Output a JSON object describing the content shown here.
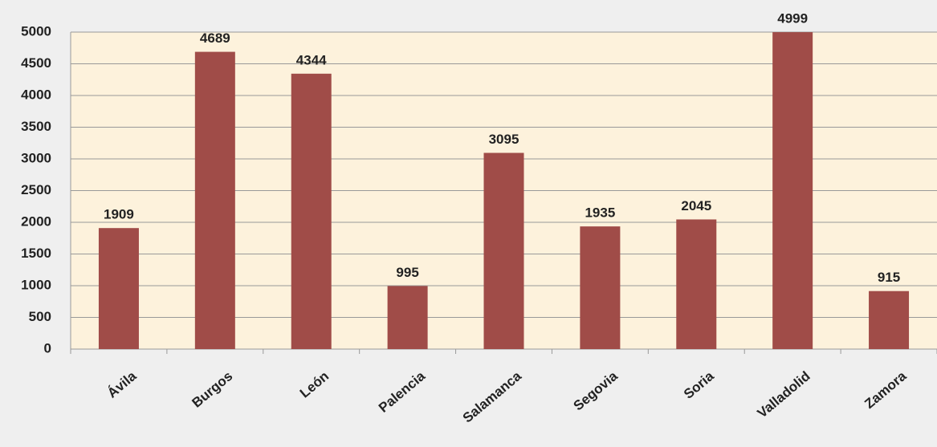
{
  "chart_data": {
    "type": "bar",
    "categories": [
      "Ávila",
      "Burgos",
      "León",
      "Palencia",
      "Salamanca",
      "Segovia",
      "Soria",
      "Valladolid",
      "Zamora"
    ],
    "values": [
      1909,
      4689,
      4344,
      995,
      3095,
      1935,
      2045,
      4999,
      915
    ],
    "color": "#a04c48",
    "ylim": [
      0,
      5000
    ],
    "yticks": [
      0,
      500,
      1000,
      1500,
      2000,
      2500,
      3000,
      3500,
      4000,
      4500,
      5000
    ],
    "grid": true
  }
}
